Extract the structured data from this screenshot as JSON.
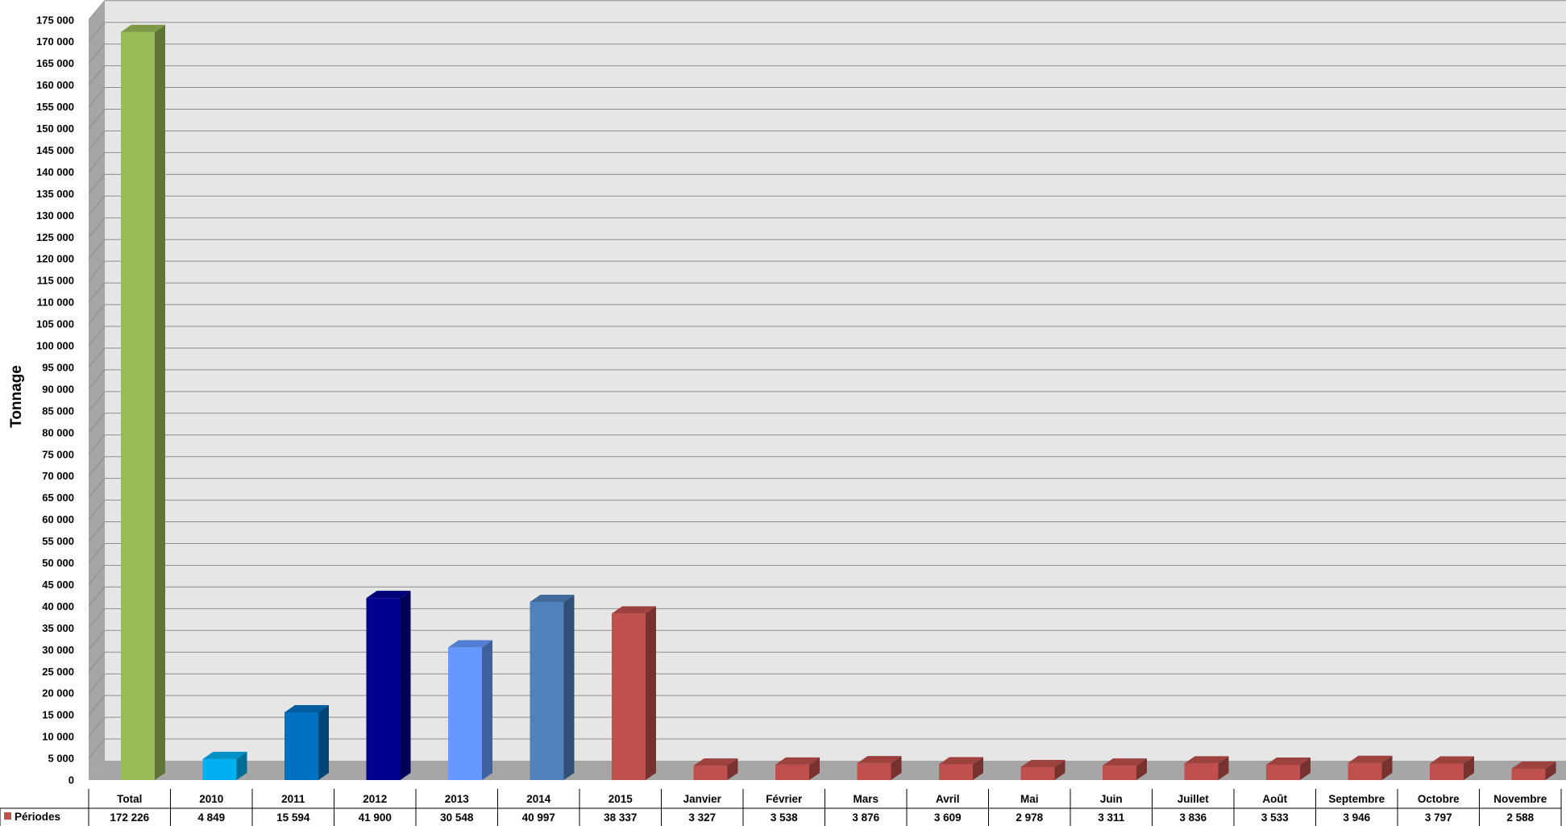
{
  "chart_data": {
    "type": "bar",
    "ylabel": "Tonnage",
    "ylim": [
      0,
      175000
    ],
    "ytick_step": 5000,
    "grid": true,
    "categories": [
      "Total",
      "2010",
      "2011",
      "2012",
      "2013",
      "2014",
      "2015",
      "Janvier",
      "Février",
      "Mars",
      "Avril",
      "Mai",
      "Juin",
      "Juillet",
      "Août",
      "Septembre",
      "Octobre",
      "Novembre"
    ],
    "series": [
      {
        "name": "Périodes",
        "values": [
          172226,
          4849,
          15594,
          41900,
          30548,
          40997,
          38337,
          3327,
          3538,
          3876,
          3609,
          2978,
          3311,
          3836,
          3533,
          3946,
          3797,
          2588
        ],
        "value_labels": [
          "172 226",
          "4 849",
          "15 594",
          "41 900",
          "30 548",
          "40 997",
          "38 337",
          "3 327",
          "3 538",
          "3 876",
          "3 609",
          "2 978",
          "3 311",
          "3 836",
          "3 533",
          "3 946",
          "3 797",
          "2 588"
        ]
      }
    ],
    "colors": {
      "Total": "#9BBB59",
      "2010": "#00B0F0",
      "2011": "#0070C0",
      "2012": "#000090",
      "2013": "#6699FF",
      "2014": "#4F81BD",
      "default": "#C0504D"
    },
    "legend_color": "#C0504D",
    "data_table": true
  }
}
